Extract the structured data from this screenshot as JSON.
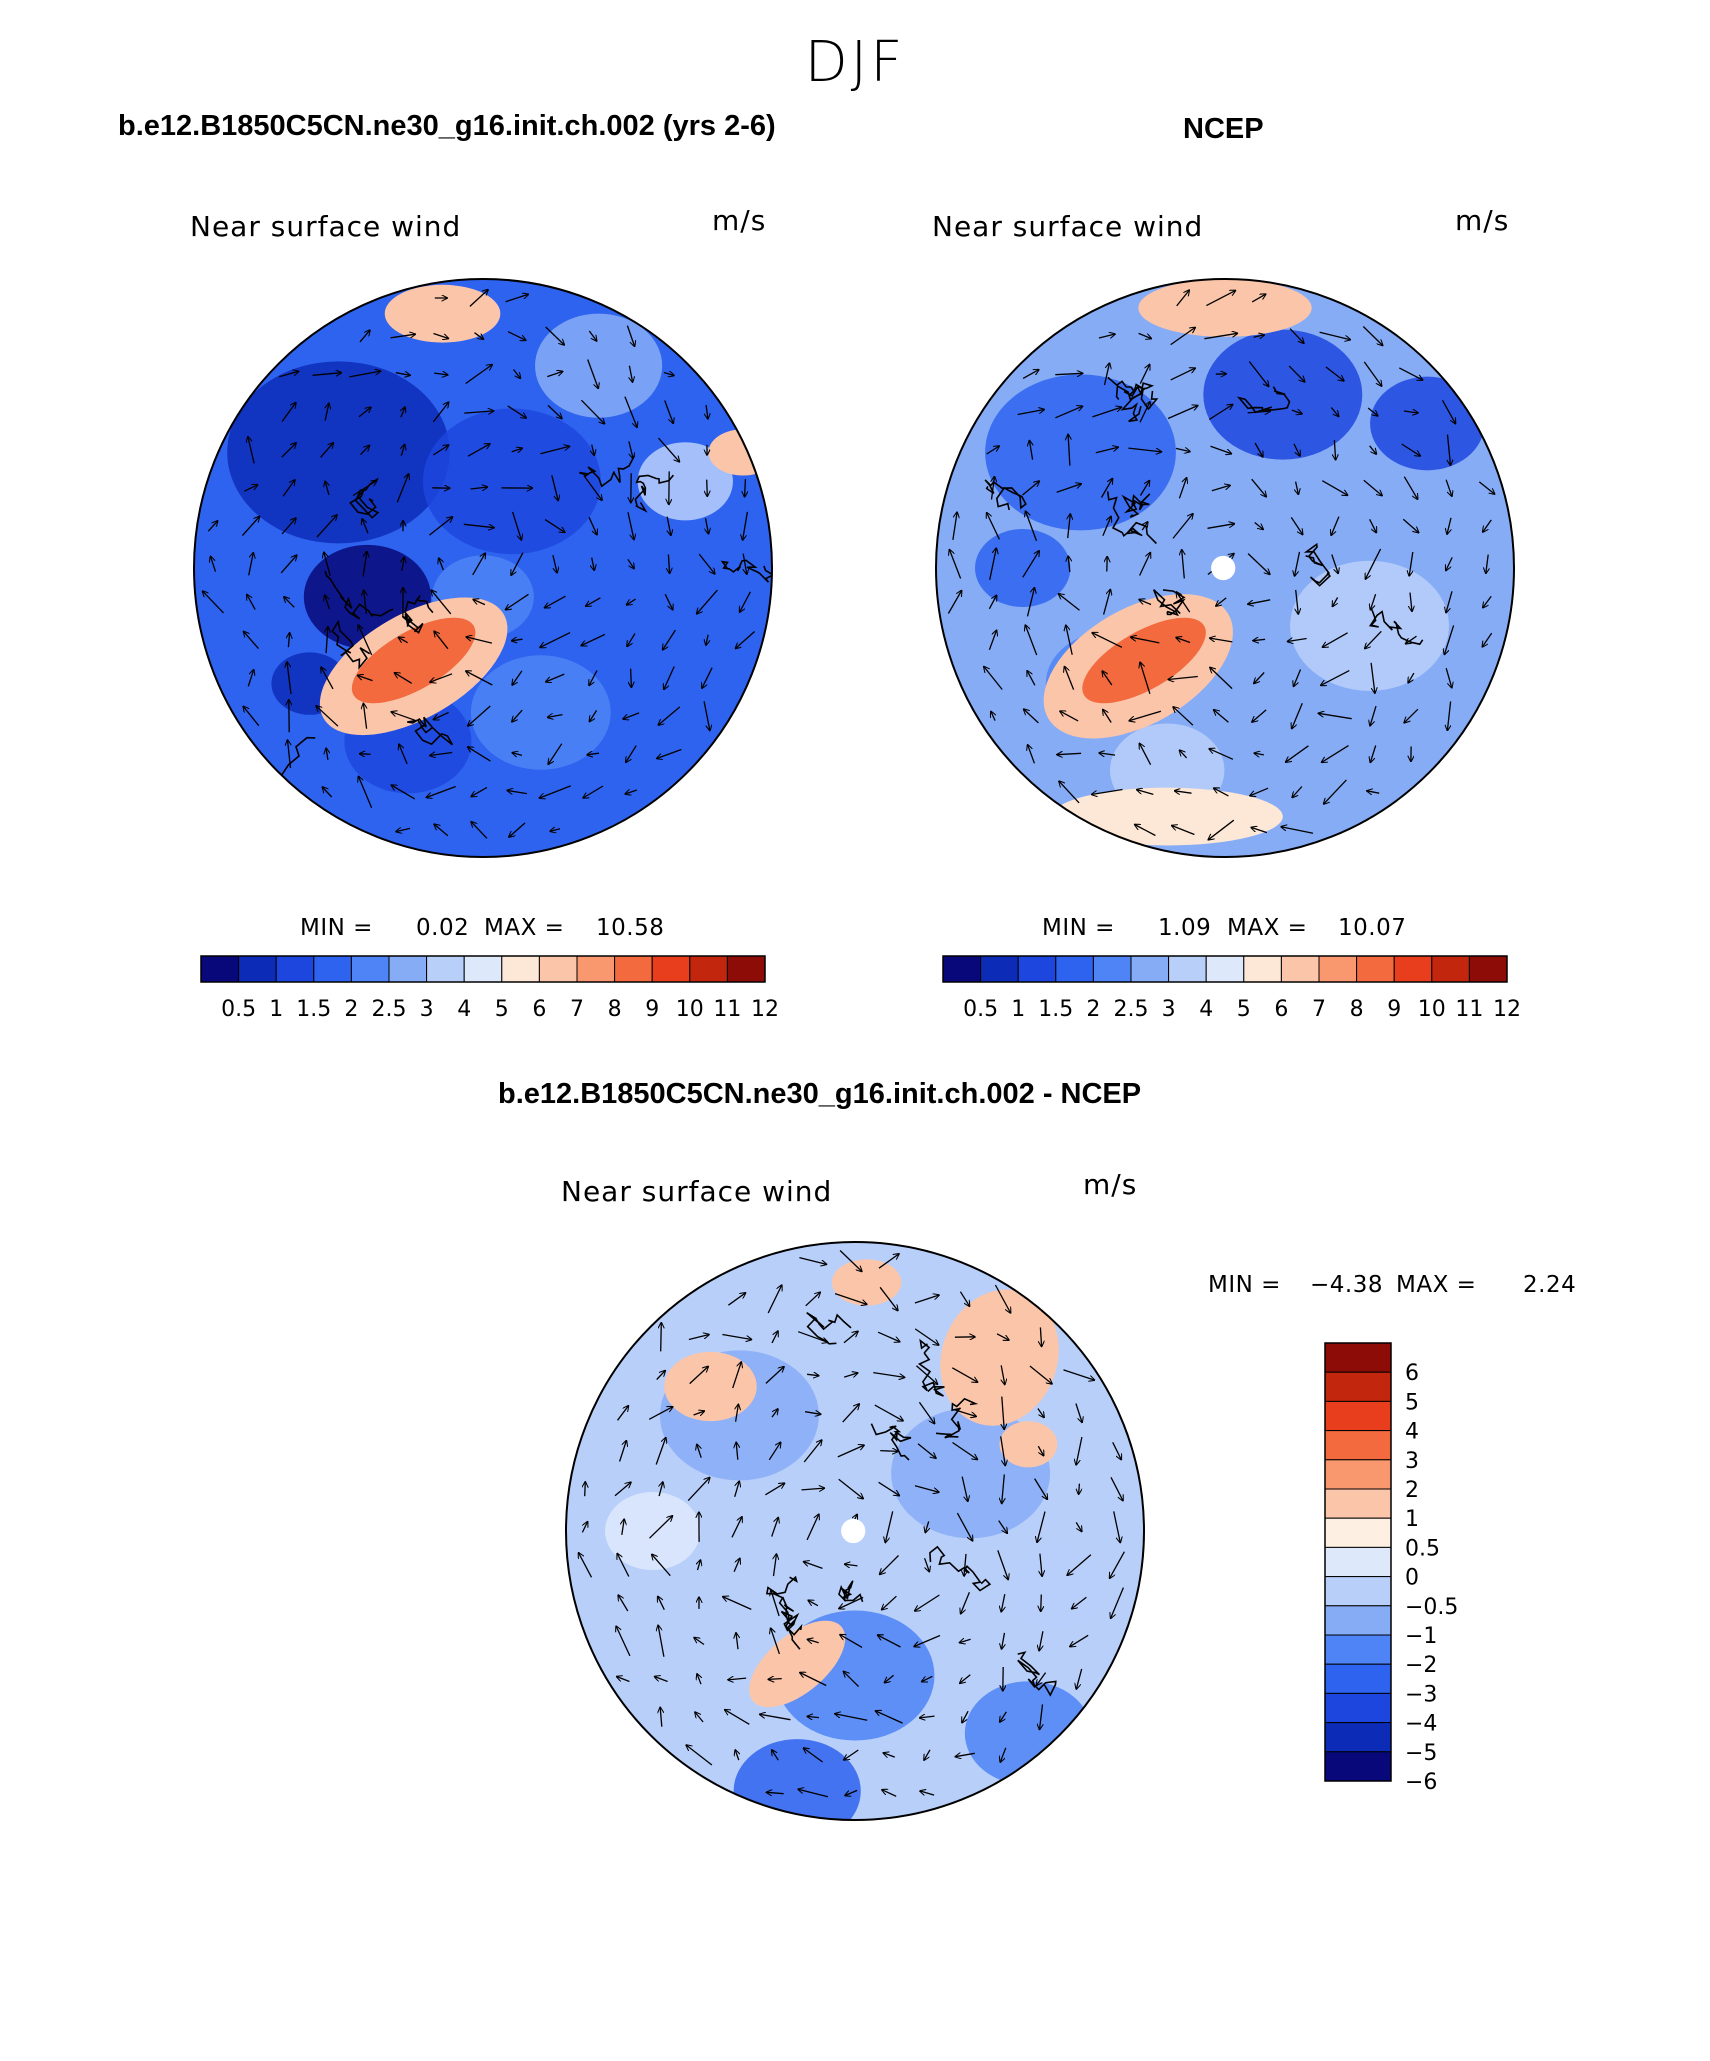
{
  "figure_title": "DJF",
  "colors": {
    "seq_scale": [
      "#08087a",
      "#0c2cb8",
      "#1d46de",
      "#2e63ef",
      "#4e84f5",
      "#86acf6",
      "#b8cffa",
      "#dde9fb",
      "#fde7d6",
      "#fbc5aa",
      "#f9986f",
      "#f26a3e",
      "#e93e1d",
      "#c2270d",
      "#8e0c07"
    ],
    "diff_scale": [
      "#08087a",
      "#0c2cb8",
      "#1d46de",
      "#2e63ef",
      "#4e84f5",
      "#86acf6",
      "#b8cffa",
      "#dde9fb",
      "#fdf0e2",
      "#fbc5aa",
      "#f9986f",
      "#f26a3e",
      "#e93e1d",
      "#c2270d",
      "#8e0c07"
    ],
    "land_outline": "#000000"
  },
  "chart_data": [
    {
      "type": "heatmap",
      "panel": "model",
      "title": "b.e12.B1850C5CN.ne30_g16.init.ch.002 (yrs 2-6)",
      "subtitle": "Near surface wind",
      "units": "m/s",
      "min_label": "MIN =",
      "min_value": "0.02",
      "max_label": "MAX =",
      "max_value": "10.58",
      "colorbar_levels": [
        "0.5",
        "1",
        "1.5",
        "2",
        "2.5",
        "3",
        "4",
        "5",
        "6",
        "7",
        "8",
        "9",
        "10",
        "11",
        "12"
      ]
    },
    {
      "type": "heatmap",
      "panel": "observations",
      "title": "NCEP",
      "subtitle": "Near surface wind",
      "units": "m/s",
      "min_label": "MIN =",
      "min_value": "1.09",
      "max_label": "MAX =",
      "max_value": "10.07",
      "colorbar_levels": [
        "0.5",
        "1",
        "1.5",
        "2",
        "2.5",
        "3",
        "4",
        "5",
        "6",
        "7",
        "8",
        "9",
        "10",
        "11",
        "12"
      ]
    },
    {
      "type": "heatmap",
      "panel": "difference",
      "title": "b.e12.B1850C5CN.ne30_g16.init.ch.002 - NCEP",
      "subtitle": "Near surface wind",
      "units": "m/s",
      "min_label": "MIN =",
      "min_value": "−4.38",
      "max_label": "MAX =",
      "max_value": "2.24",
      "colorbar_levels": [
        "6",
        "5",
        "4",
        "3",
        "2",
        "1",
        "0.5",
        "0",
        "−0.5",
        "−1",
        "−2",
        "−3",
        "−4",
        "−5",
        "−6"
      ]
    }
  ]
}
